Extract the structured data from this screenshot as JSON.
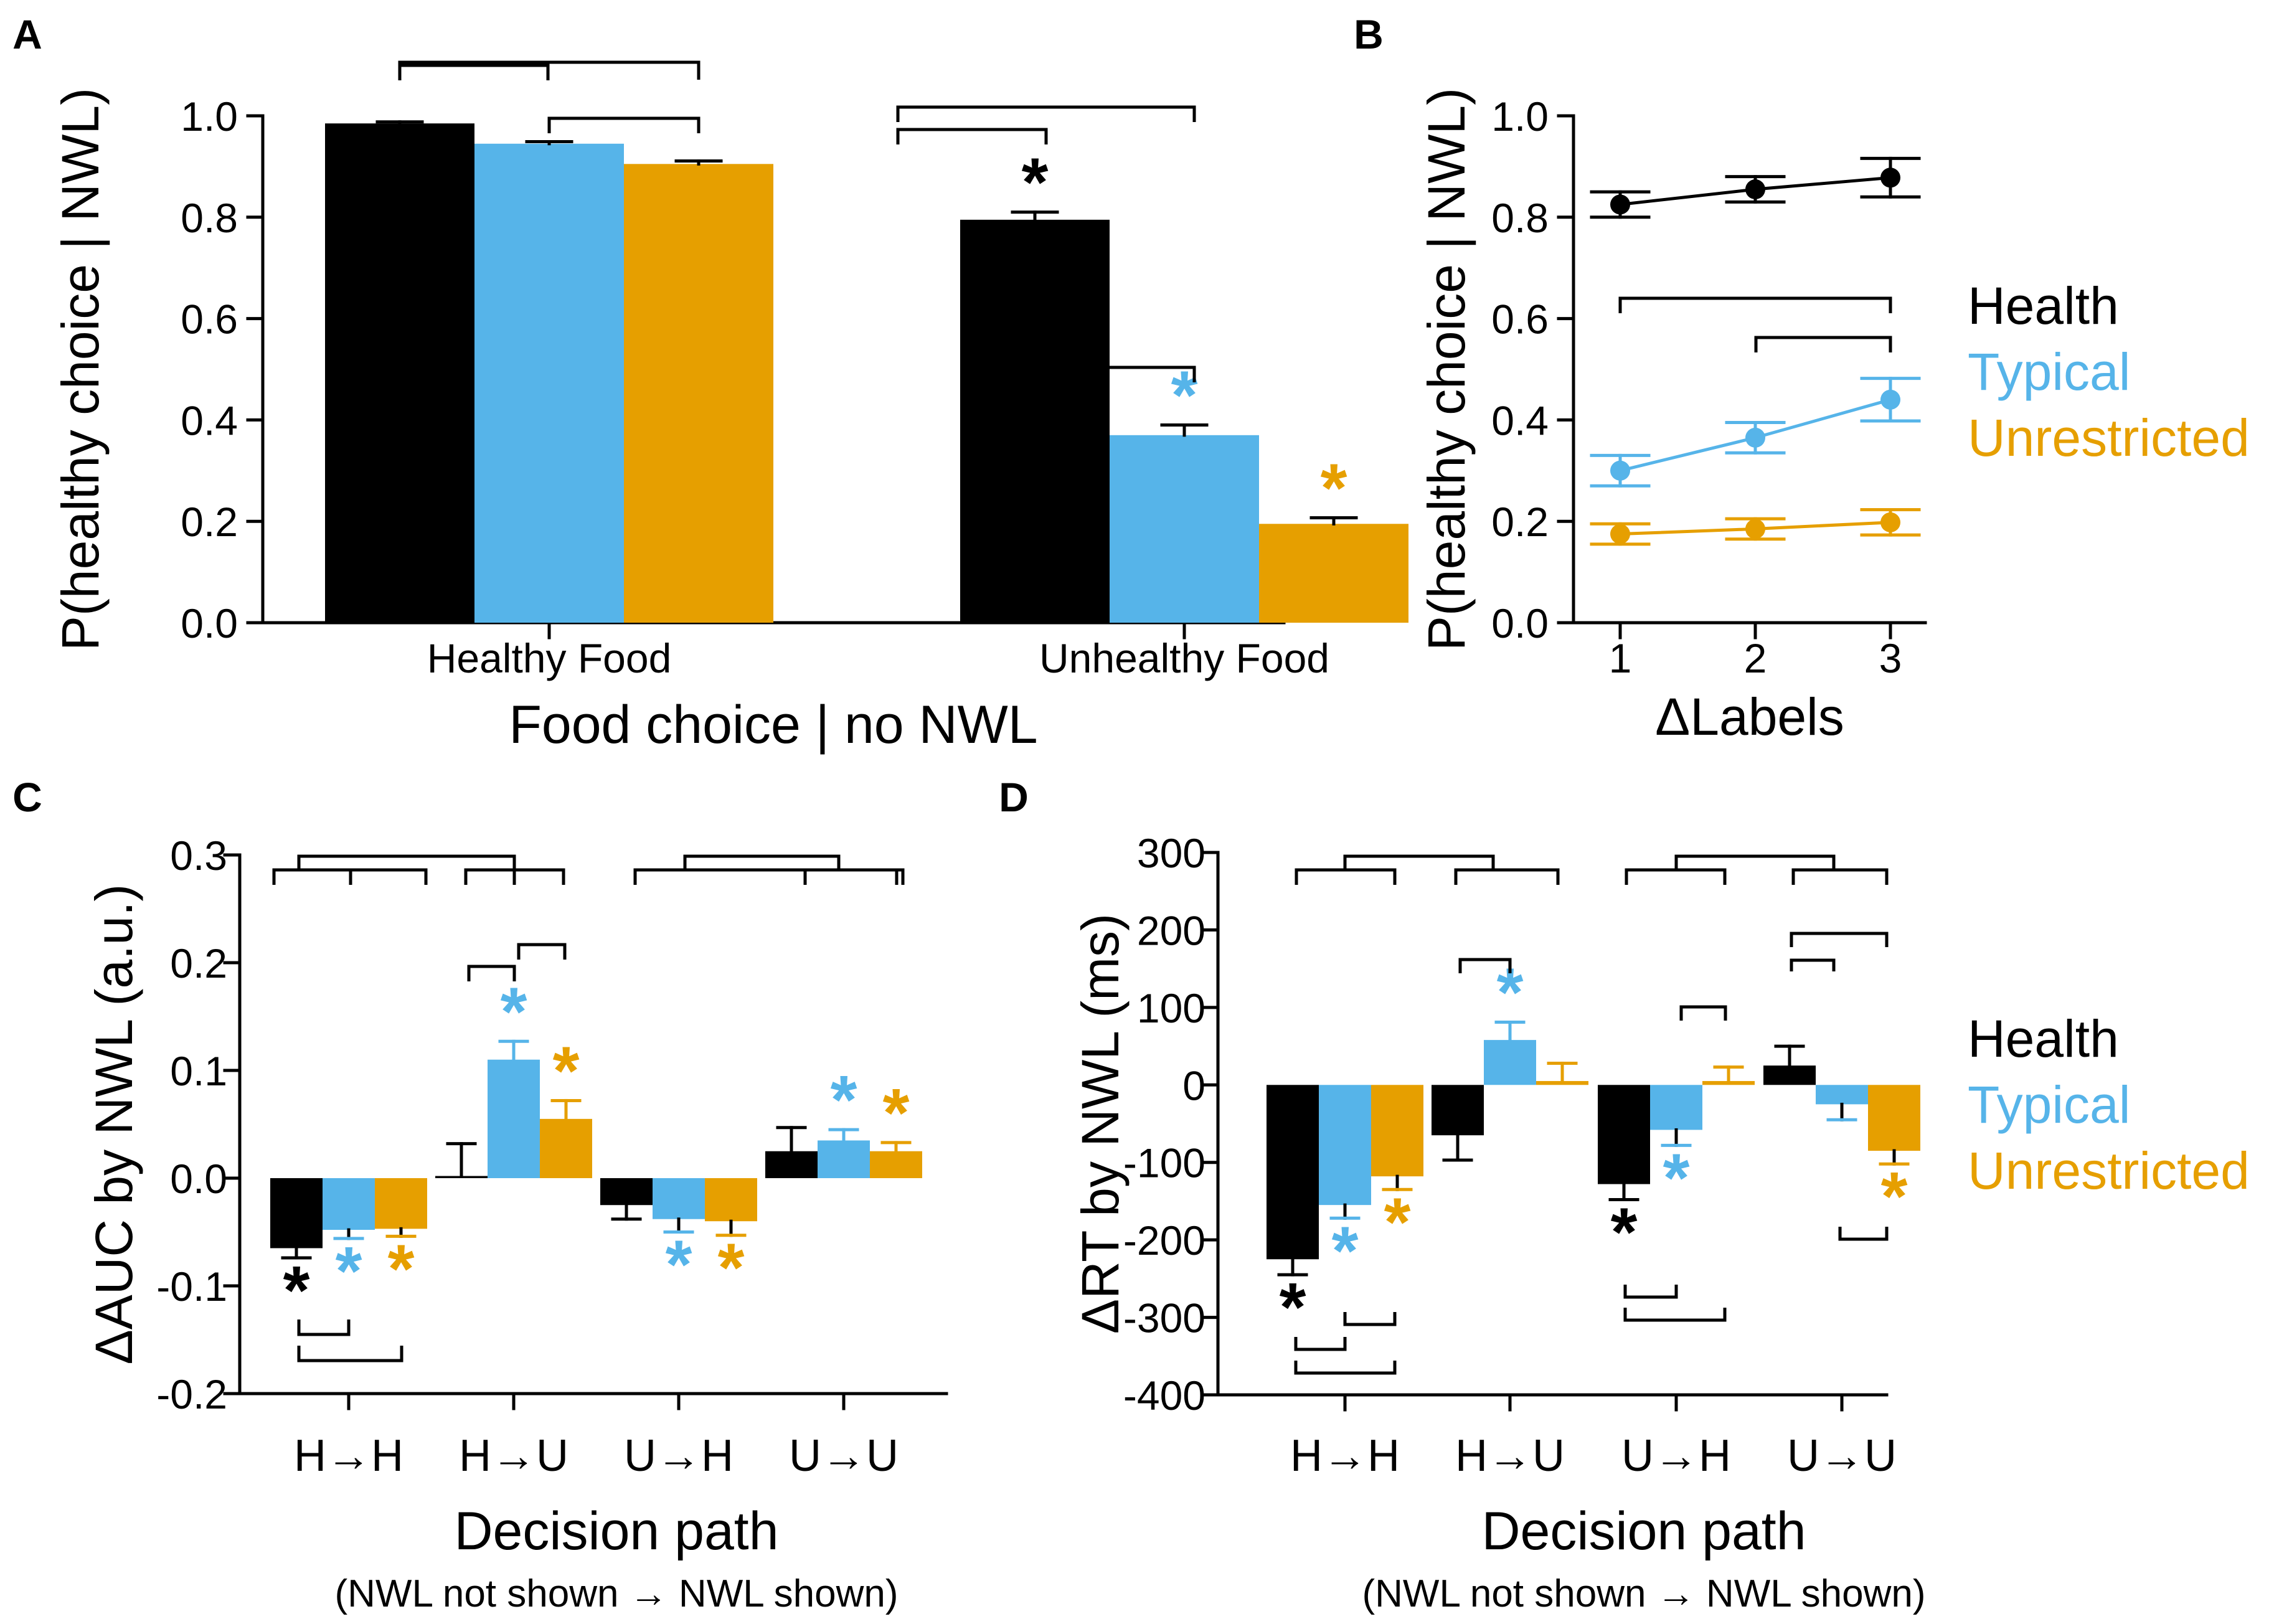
{
  "colors": {
    "health": "#000000",
    "typical": "#56b4e9",
    "unrestricted": "#e69f00",
    "axis": "#000000"
  },
  "legend": {
    "entries": [
      "Health",
      "Typical",
      "Unrestricted"
    ]
  },
  "panel_labels": [
    "A",
    "B",
    "C",
    "D"
  ],
  "chart_data": [
    {
      "id": "A",
      "type": "bar",
      "ylabel": "P(healthy choice | NWL)",
      "xlabel": "Food choice | no NWL",
      "categories": [
        "Healthy Food",
        "Unhealthy Food"
      ],
      "ylim": [
        0,
        1.0
      ],
      "yticks": [
        "0.0",
        "0.2",
        "0.4",
        "0.6",
        "0.8",
        "1.0"
      ],
      "series": [
        {
          "name": "Health",
          "values": [
            0.985,
            0.795
          ],
          "errors": [
            0.003,
            0.015
          ],
          "stars": [
            false,
            true
          ]
        },
        {
          "name": "Typical",
          "values": [
            0.945,
            0.37
          ],
          "errors": [
            0.004,
            0.02
          ],
          "stars": [
            false,
            true
          ]
        },
        {
          "name": "Unrestricted",
          "values": [
            0.905,
            0.195
          ],
          "errors": [
            0.006,
            0.012
          ],
          "stars": [
            false,
            true
          ]
        }
      ],
      "asterisk": "*"
    },
    {
      "id": "B",
      "type": "line",
      "ylabel": "P(healthy choice | NWL)",
      "xlabel": "ΔLabels",
      "x": [
        1,
        2,
        3
      ],
      "xticks": [
        "1",
        "2",
        "3"
      ],
      "ylim": [
        0,
        1.0
      ],
      "yticks": [
        "0.0",
        "0.2",
        "0.4",
        "0.6",
        "0.8",
        "1.0"
      ],
      "series": [
        {
          "name": "Health",
          "values": [
            0.825,
            0.855,
            0.878
          ],
          "errors": [
            0.025,
            0.025,
            0.038
          ]
        },
        {
          "name": "Typical",
          "values": [
            0.3,
            0.365,
            0.44
          ],
          "errors": [
            0.03,
            0.03,
            0.042
          ]
        },
        {
          "name": "Unrestricted",
          "values": [
            0.175,
            0.185,
            0.198
          ],
          "errors": [
            0.02,
            0.02,
            0.025
          ]
        }
      ]
    },
    {
      "id": "C",
      "type": "bar",
      "ylabel": "ΔAUC by NWL (a.u.)",
      "xlabel": "Decision path",
      "xsublabel": "(NWL not shown → NWL shown)",
      "categories": [
        "H→H",
        "H→U",
        "U→H",
        "U→U"
      ],
      "ylim": [
        -0.2,
        0.3
      ],
      "yticks": [
        "-0.2",
        "-0.1",
        "0.0",
        "0.1",
        "0.2",
        "0.3"
      ],
      "series": [
        {
          "name": "Health",
          "values": [
            -0.065,
            0.002,
            -0.025,
            0.025
          ],
          "errors": [
            0.009,
            0.03,
            0.013,
            0.022
          ],
          "stars": [
            true,
            false,
            false,
            false
          ]
        },
        {
          "name": "Typical",
          "values": [
            -0.048,
            0.11,
            -0.038,
            0.035
          ],
          "errors": [
            0.008,
            0.017,
            0.012,
            0.01
          ],
          "stars": [
            true,
            true,
            true,
            true
          ]
        },
        {
          "name": "Unrestricted",
          "values": [
            -0.047,
            0.055,
            -0.04,
            0.025
          ],
          "errors": [
            0.007,
            0.017,
            0.013,
            0.008
          ],
          "stars": [
            true,
            true,
            true,
            true
          ]
        }
      ],
      "asterisk": "*"
    },
    {
      "id": "D",
      "type": "bar",
      "ylabel": "ΔRT by NWL (ms)",
      "xlabel": "Decision path",
      "xsublabel": "(NWL not shown → NWL shown)",
      "categories": [
        "H→H",
        "H→U",
        "U→H",
        "U→U"
      ],
      "ylim": [
        -400,
        300
      ],
      "yticks": [
        "-400",
        "-300",
        "-200",
        "-100",
        "0",
        "100",
        "200",
        "300"
      ],
      "series": [
        {
          "name": "Health",
          "values": [
            -225,
            -65,
            -128,
            25
          ],
          "errors": [
            20,
            32,
            20,
            25
          ],
          "stars": [
            true,
            false,
            true,
            false
          ]
        },
        {
          "name": "Typical",
          "values": [
            -155,
            58,
            -58,
            -25
          ],
          "errors": [
            17,
            23,
            20,
            20
          ],
          "stars": [
            true,
            true,
            true,
            false
          ]
        },
        {
          "name": "Unrestricted",
          "values": [
            -118,
            5,
            5,
            -85
          ],
          "errors": [
            17,
            23,
            18,
            17
          ],
          "stars": [
            true,
            false,
            false,
            true
          ]
        }
      ],
      "asterisk": "*"
    }
  ]
}
